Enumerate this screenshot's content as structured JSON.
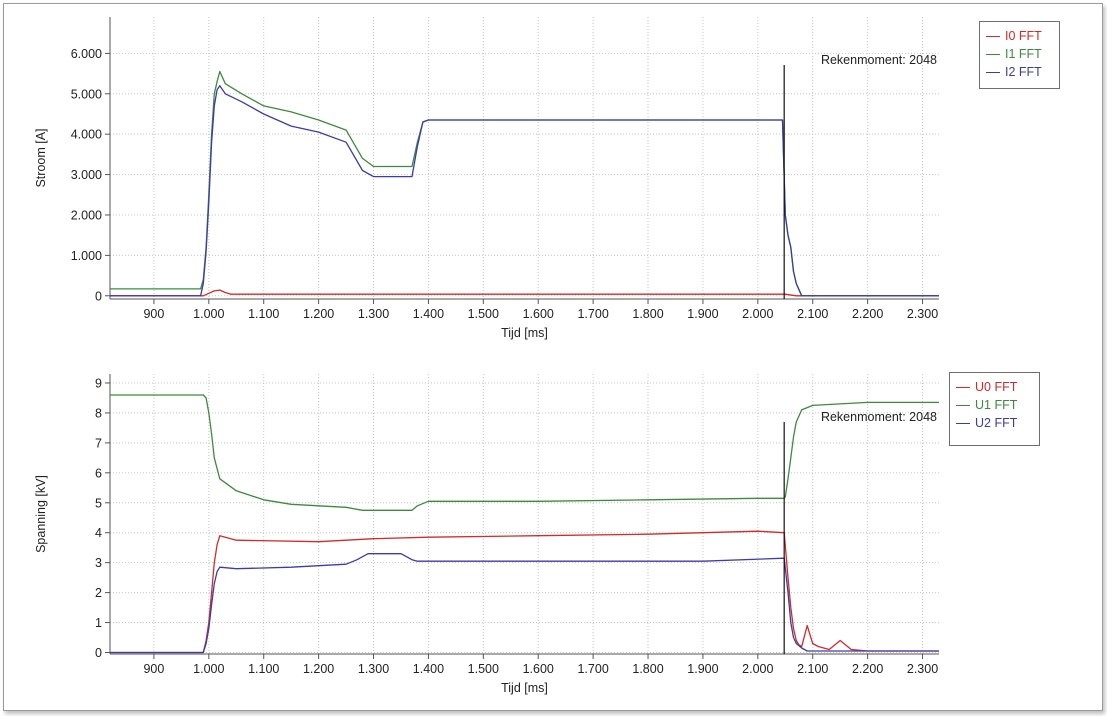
{
  "chart_data": [
    {
      "type": "line",
      "xlabel": "Tijd [ms]",
      "ylabel": "Stroom [A]",
      "xlim": [
        820,
        2330
      ],
      "ylim": [
        -80,
        6900
      ],
      "xticks": [
        900,
        1000,
        1100,
        1200,
        1300,
        1400,
        1500,
        1600,
        1700,
        1800,
        1900,
        2000,
        2100,
        2200,
        2300
      ],
      "xtick_labels": [
        "900",
        "1.000",
        "1.100",
        "1.200",
        "1.300",
        "1.400",
        "1.500",
        "1.600",
        "1.700",
        "1.800",
        "1.900",
        "2.000",
        "2.100",
        "2.200",
        "2.300"
      ],
      "yticks": [
        0,
        1000,
        2000,
        3000,
        4000,
        5000,
        6000
      ],
      "ytick_labels": [
        "0",
        "1.000",
        "2.000",
        "3.000",
        "4.000",
        "5.000",
        "6.000"
      ],
      "grid": true,
      "legend_position": "right",
      "marker": {
        "x": 2048,
        "label": "Rekenmoment: 2048"
      },
      "series": [
        {
          "name": "I0 FFT",
          "color": "#d42a2a",
          "x": [
            820,
            990,
            1000,
            1010,
            1020,
            1030,
            1040,
            2050,
            2070,
            2330
          ],
          "y": [
            0,
            0,
            60,
            120,
            140,
            80,
            40,
            40,
            0,
            0
          ]
        },
        {
          "name": "I1 FFT",
          "color": "#3d8a3d",
          "x": [
            820,
            985,
            990,
            995,
            1000,
            1005,
            1010,
            1015,
            1020,
            1030,
            1060,
            1100,
            1150,
            1200,
            1250,
            1280,
            1300,
            1370,
            1380,
            1390,
            1400,
            2045,
            2050,
            2055,
            2060,
            2065,
            2070,
            2080,
            2330
          ],
          "y": [
            170,
            170,
            400,
            1200,
            2500,
            4000,
            5000,
            5300,
            5550,
            5250,
            5000,
            4700,
            4550,
            4350,
            4100,
            3400,
            3200,
            3200,
            3800,
            4300,
            4350,
            4350,
            2000,
            1500,
            1200,
            600,
            300,
            0,
            0
          ]
        },
        {
          "name": "I2 FFT",
          "color": "#3c3ca8",
          "x": [
            820,
            985,
            990,
            995,
            1000,
            1005,
            1010,
            1015,
            1020,
            1030,
            1060,
            1100,
            1150,
            1200,
            1250,
            1280,
            1300,
            1370,
            1380,
            1390,
            1400,
            2045,
            2050,
            2055,
            2060,
            2065,
            2070,
            2080,
            2330
          ],
          "y": [
            0,
            0,
            300,
            1100,
            2300,
            3800,
            4700,
            5100,
            5200,
            5000,
            4800,
            4500,
            4200,
            4050,
            3800,
            3100,
            2950,
            2950,
            3700,
            4300,
            4350,
            4350,
            2000,
            1500,
            1200,
            600,
            300,
            0,
            0
          ]
        }
      ]
    },
    {
      "type": "line",
      "xlabel": "Tijd [ms]",
      "ylabel": "Spanning [kV]",
      "xlim": [
        820,
        2330
      ],
      "ylim": [
        -0.05,
        9.3
      ],
      "xticks": [
        900,
        1000,
        1100,
        1200,
        1300,
        1400,
        1500,
        1600,
        1700,
        1800,
        1900,
        2000,
        2100,
        2200,
        2300
      ],
      "xtick_labels": [
        "900",
        "1.000",
        "1.100",
        "1.200",
        "1.300",
        "1.400",
        "1.500",
        "1.600",
        "1.700",
        "1.800",
        "1.900",
        "2.000",
        "2.100",
        "2.200",
        "2.300"
      ],
      "yticks": [
        0,
        1,
        2,
        3,
        4,
        5,
        6,
        7,
        8,
        9
      ],
      "ytick_labels": [
        "0",
        "1",
        "2",
        "3",
        "4",
        "5",
        "6",
        "7",
        "8",
        "9"
      ],
      "grid": true,
      "legend_position": "right",
      "marker": {
        "x": 2048,
        "label": "Rekenmoment: 2048"
      },
      "series": [
        {
          "name": "U0 FFT",
          "color": "#d42a2a",
          "x": [
            820,
            990,
            995,
            1000,
            1005,
            1010,
            1015,
            1020,
            1050,
            1200,
            1300,
            1400,
            1600,
            1800,
            2000,
            2048,
            2055,
            2060,
            2065,
            2070,
            2075,
            2080,
            2090,
            2100,
            2110,
            2130,
            2150,
            2170,
            2200,
            2330
          ],
          "y": [
            0,
            0,
            0.4,
            1.0,
            2.0,
            3.0,
            3.6,
            3.9,
            3.75,
            3.7,
            3.8,
            3.85,
            3.9,
            3.95,
            4.05,
            4.0,
            2.5,
            1.5,
            0.8,
            0.4,
            0.25,
            0.2,
            0.9,
            0.3,
            0.2,
            0.1,
            0.4,
            0.1,
            0.05,
            0.05
          ]
        },
        {
          "name": "U1 FFT",
          "color": "#3d8a3d",
          "x": [
            820,
            990,
            995,
            1000,
            1005,
            1010,
            1020,
            1050,
            1100,
            1150,
            1200,
            1250,
            1280,
            1370,
            1380,
            1400,
            1600,
            1800,
            2000,
            2048,
            2050,
            2055,
            2060,
            2065,
            2070,
            2080,
            2100,
            2150,
            2200,
            2330
          ],
          "y": [
            8.6,
            8.6,
            8.5,
            8.0,
            7.3,
            6.5,
            5.8,
            5.4,
            5.1,
            4.95,
            4.9,
            4.85,
            4.75,
            4.75,
            4.9,
            5.05,
            5.05,
            5.1,
            5.15,
            5.15,
            5.2,
            5.8,
            6.5,
            7.2,
            7.7,
            8.1,
            8.25,
            8.3,
            8.35,
            8.35
          ]
        },
        {
          "name": "U2 FFT",
          "color": "#3c3ca8",
          "x": [
            820,
            990,
            995,
            1000,
            1005,
            1010,
            1015,
            1020,
            1050,
            1150,
            1250,
            1270,
            1290,
            1350,
            1370,
            1380,
            1500,
            1700,
            1900,
            2048,
            2055,
            2060,
            2065,
            2070,
            2080,
            2090,
            2100,
            2150,
            2200,
            2330
          ],
          "y": [
            0,
            0,
            0.3,
            0.8,
            1.6,
            2.3,
            2.7,
            2.85,
            2.8,
            2.85,
            2.95,
            3.1,
            3.3,
            3.3,
            3.1,
            3.05,
            3.05,
            3.05,
            3.05,
            3.15,
            2.0,
            1.0,
            0.5,
            0.3,
            0.15,
            0.05,
            0.05,
            0.05,
            0.05,
            0.05
          ]
        }
      ]
    }
  ]
}
